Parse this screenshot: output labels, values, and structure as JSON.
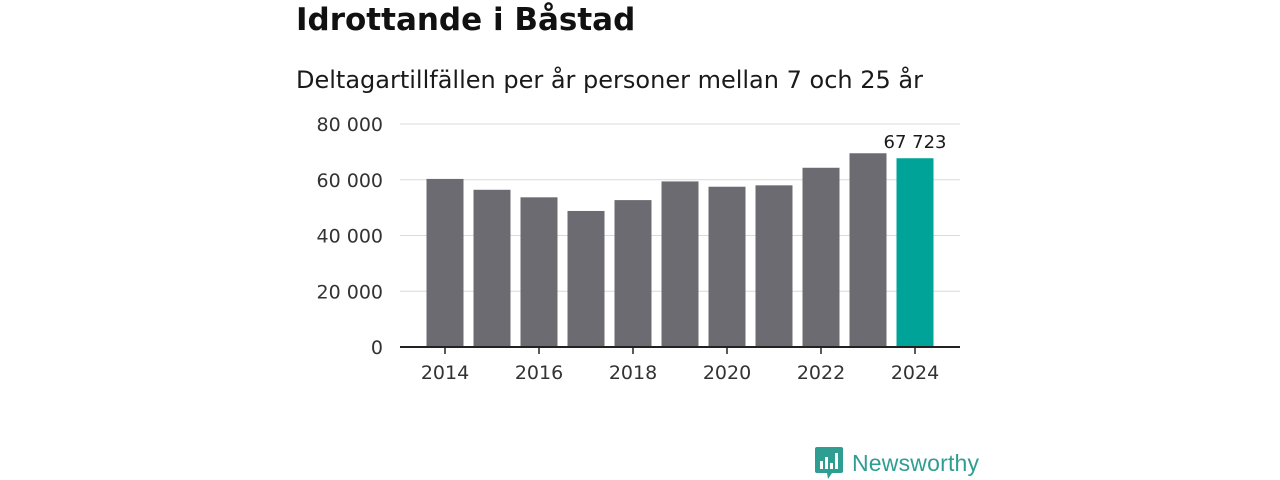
{
  "header": {
    "title": "Idrottande i Båstad",
    "subtitle": "Deltagartillfällen per år personer mellan 7 och 25 år"
  },
  "brand": {
    "name": "Newsworthy",
    "color": "#2e9e93"
  },
  "chart_data": {
    "type": "bar",
    "title": "Idrottande i Båstad",
    "subtitle": "Deltagartillfällen per år personer mellan 7 och 25 år",
    "xlabel": "",
    "ylabel": "",
    "categories": [
      "2014",
      "2015",
      "2016",
      "2017",
      "2018",
      "2019",
      "2020",
      "2021",
      "2022",
      "2023",
      "2024"
    ],
    "values": [
      60300,
      56400,
      53700,
      48800,
      52700,
      59400,
      57500,
      58000,
      64300,
      69500,
      67723
    ],
    "ylim": [
      0,
      80000
    ],
    "yticks": [
      0,
      20000,
      40000,
      60000,
      80000
    ],
    "ytick_labels": [
      "0",
      "20 000",
      "40 000",
      "60 000",
      "80 000"
    ],
    "xtick_labels": [
      "2014",
      "2016",
      "2018",
      "2020",
      "2022",
      "2024"
    ],
    "highlight_index": 10,
    "highlight_label": "67 723",
    "bar_color": "#6c6b71",
    "highlight_color": "#00a397",
    "grid": true,
    "legend": "none"
  }
}
